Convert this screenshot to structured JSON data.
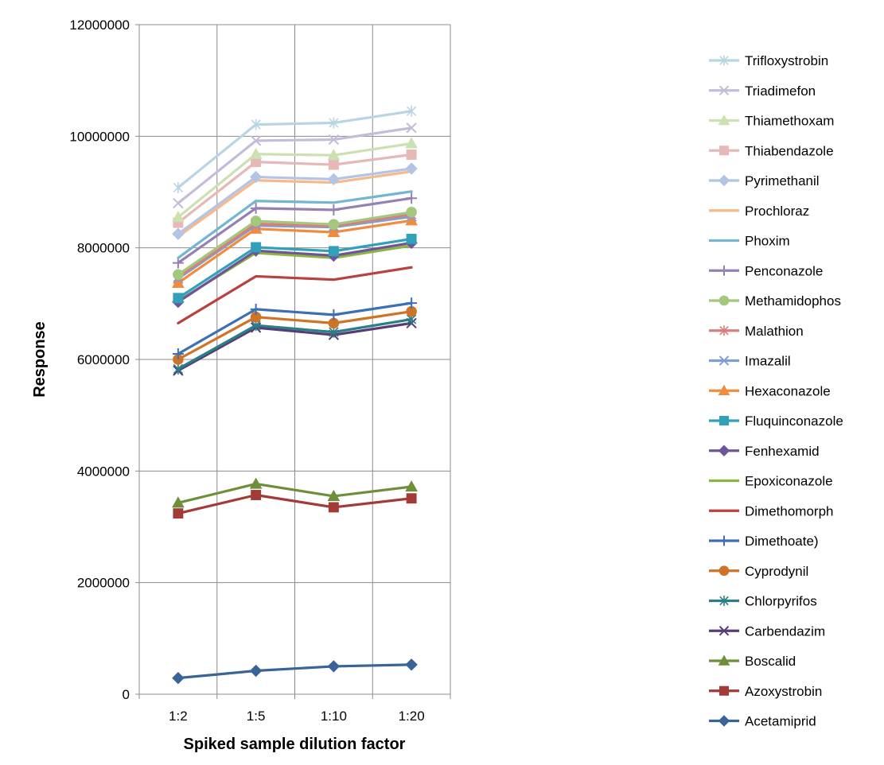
{
  "chart_data": {
    "type": "line",
    "title": "",
    "xlabel": "Spiked sample dilution factor",
    "ylabel": "Response",
    "categories": [
      "1:2",
      "1:5",
      "1:10",
      "1:20"
    ],
    "ylim": [
      0,
      12000000
    ],
    "yticks": [
      0,
      2000000,
      4000000,
      6000000,
      8000000,
      10000000,
      12000000
    ],
    "ytick_labels": [
      "0",
      "2000000",
      "4000000",
      "6000000",
      "8000000",
      "10000000",
      "12000000"
    ],
    "grid": true,
    "legend_position": "right",
    "series": [
      {
        "name": "Trifloxystrobin",
        "color": "#b7d5e3",
        "marker": "asterisk",
        "values": [
          9080000,
          10210000,
          10240000,
          10450000
        ]
      },
      {
        "name": "Triadimefon",
        "color": "#c4bcd8",
        "marker": "x",
        "values": [
          8800000,
          9920000,
          9940000,
          10150000
        ]
      },
      {
        "name": "Thiamethoxam",
        "color": "#cde0b1",
        "marker": "triangle",
        "values": [
          8550000,
          9680000,
          9660000,
          9870000
        ]
      },
      {
        "name": "Thiabendazole",
        "color": "#e6b8b7",
        "marker": "square",
        "values": [
          8450000,
          9540000,
          9490000,
          9670000
        ]
      },
      {
        "name": "Pyrimethanil",
        "color": "#b3c4e5",
        "marker": "diamond",
        "values": [
          8250000,
          9270000,
          9230000,
          9420000
        ]
      },
      {
        "name": "Prochloraz",
        "color": "#f9b88a",
        "marker": "none",
        "values": [
          8200000,
          9210000,
          9170000,
          9370000
        ]
      },
      {
        "name": "Phoxim",
        "color": "#72b6cf",
        "marker": "none",
        "values": [
          7820000,
          8840000,
          8810000,
          9010000
        ]
      },
      {
        "name": "Penconazole",
        "color": "#9580b4",
        "marker": "plus",
        "values": [
          7730000,
          8710000,
          8680000,
          8890000
        ]
      },
      {
        "name": "Methamidophos",
        "color": "#a4c77e",
        "marker": "circle",
        "values": [
          7520000,
          8480000,
          8420000,
          8640000
        ]
      },
      {
        "name": "Malathion",
        "color": "#d77f7d",
        "marker": "asterisk",
        "values": [
          7480000,
          8430000,
          8390000,
          8600000
        ]
      },
      {
        "name": "Imazalil",
        "color": "#7f9fd1",
        "marker": "x",
        "values": [
          7450000,
          8400000,
          8370000,
          8560000
        ]
      },
      {
        "name": "Hexaconazole",
        "color": "#f08c3c",
        "marker": "triangle",
        "values": [
          7370000,
          8340000,
          8280000,
          8490000
        ]
      },
      {
        "name": "Fluquinconazole",
        "color": "#31a0b8",
        "marker": "square",
        "values": [
          7100000,
          8010000,
          7940000,
          8160000
        ]
      },
      {
        "name": "Fenhexamid",
        "color": "#70549a",
        "marker": "diamond",
        "values": [
          7030000,
          7950000,
          7860000,
          8090000
        ]
      },
      {
        "name": "Epoxiconazole",
        "color": "#8cb43e",
        "marker": "none",
        "values": [
          7050000,
          7910000,
          7820000,
          8040000
        ]
      },
      {
        "name": "Dimethomorph",
        "color": "#b9413e",
        "marker": "none",
        "values": [
          6650000,
          7490000,
          7430000,
          7650000
        ]
      },
      {
        "name": "Dimethoate)",
        "color": "#3d6fb5",
        "marker": "plus",
        "values": [
          6100000,
          6900000,
          6800000,
          7010000
        ]
      },
      {
        "name": "Cyprodynil",
        "color": "#cf7427",
        "marker": "circle",
        "values": [
          6000000,
          6760000,
          6650000,
          6860000
        ]
      },
      {
        "name": "Chlorpyrifos",
        "color": "#2a7e86",
        "marker": "asterisk",
        "values": [
          5830000,
          6610000,
          6490000,
          6720000
        ]
      },
      {
        "name": "Carbendazim",
        "color": "#573d78",
        "marker": "x",
        "values": [
          5800000,
          6570000,
          6440000,
          6650000
        ]
      },
      {
        "name": "Boscalid",
        "color": "#6e8f3a",
        "marker": "triangle",
        "values": [
          3430000,
          3770000,
          3550000,
          3720000
        ]
      },
      {
        "name": "Azoxystrobin",
        "color": "#a33a37",
        "marker": "square",
        "values": [
          3240000,
          3570000,
          3350000,
          3510000
        ]
      },
      {
        "name": "Acetamiprid",
        "color": "#3a6398",
        "marker": "diamond",
        "values": [
          290000,
          420000,
          500000,
          530000
        ]
      }
    ]
  }
}
